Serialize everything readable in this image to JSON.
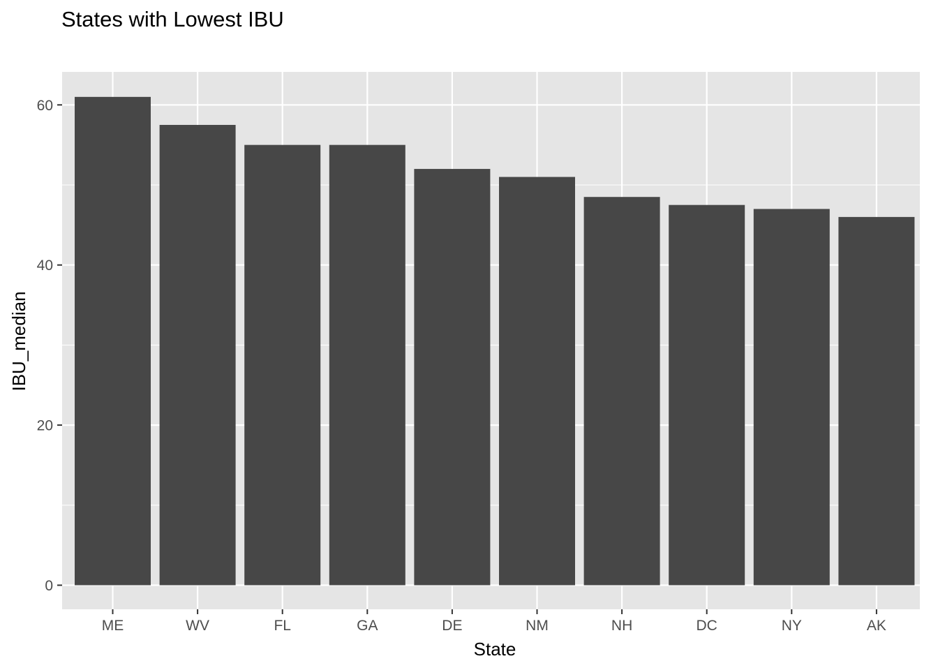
{
  "chart_data": {
    "type": "bar",
    "title": "States with Lowest IBU",
    "xlabel": "State",
    "ylabel": "IBU_median",
    "categories": [
      "ME",
      "WV",
      "FL",
      "GA",
      "DE",
      "NM",
      "NH",
      "DC",
      "NY",
      "AK"
    ],
    "values": [
      61,
      57.5,
      55,
      55,
      52,
      51,
      48.5,
      47.5,
      47,
      46
    ],
    "ylim": [
      0,
      64
    ],
    "yticks": [
      0,
      20,
      40,
      60
    ],
    "grid": true,
    "legend": "none"
  },
  "colors": {
    "bar": "#474747",
    "panel": "#e5e5e5",
    "grid": "#ffffff",
    "tick": "#333333"
  }
}
